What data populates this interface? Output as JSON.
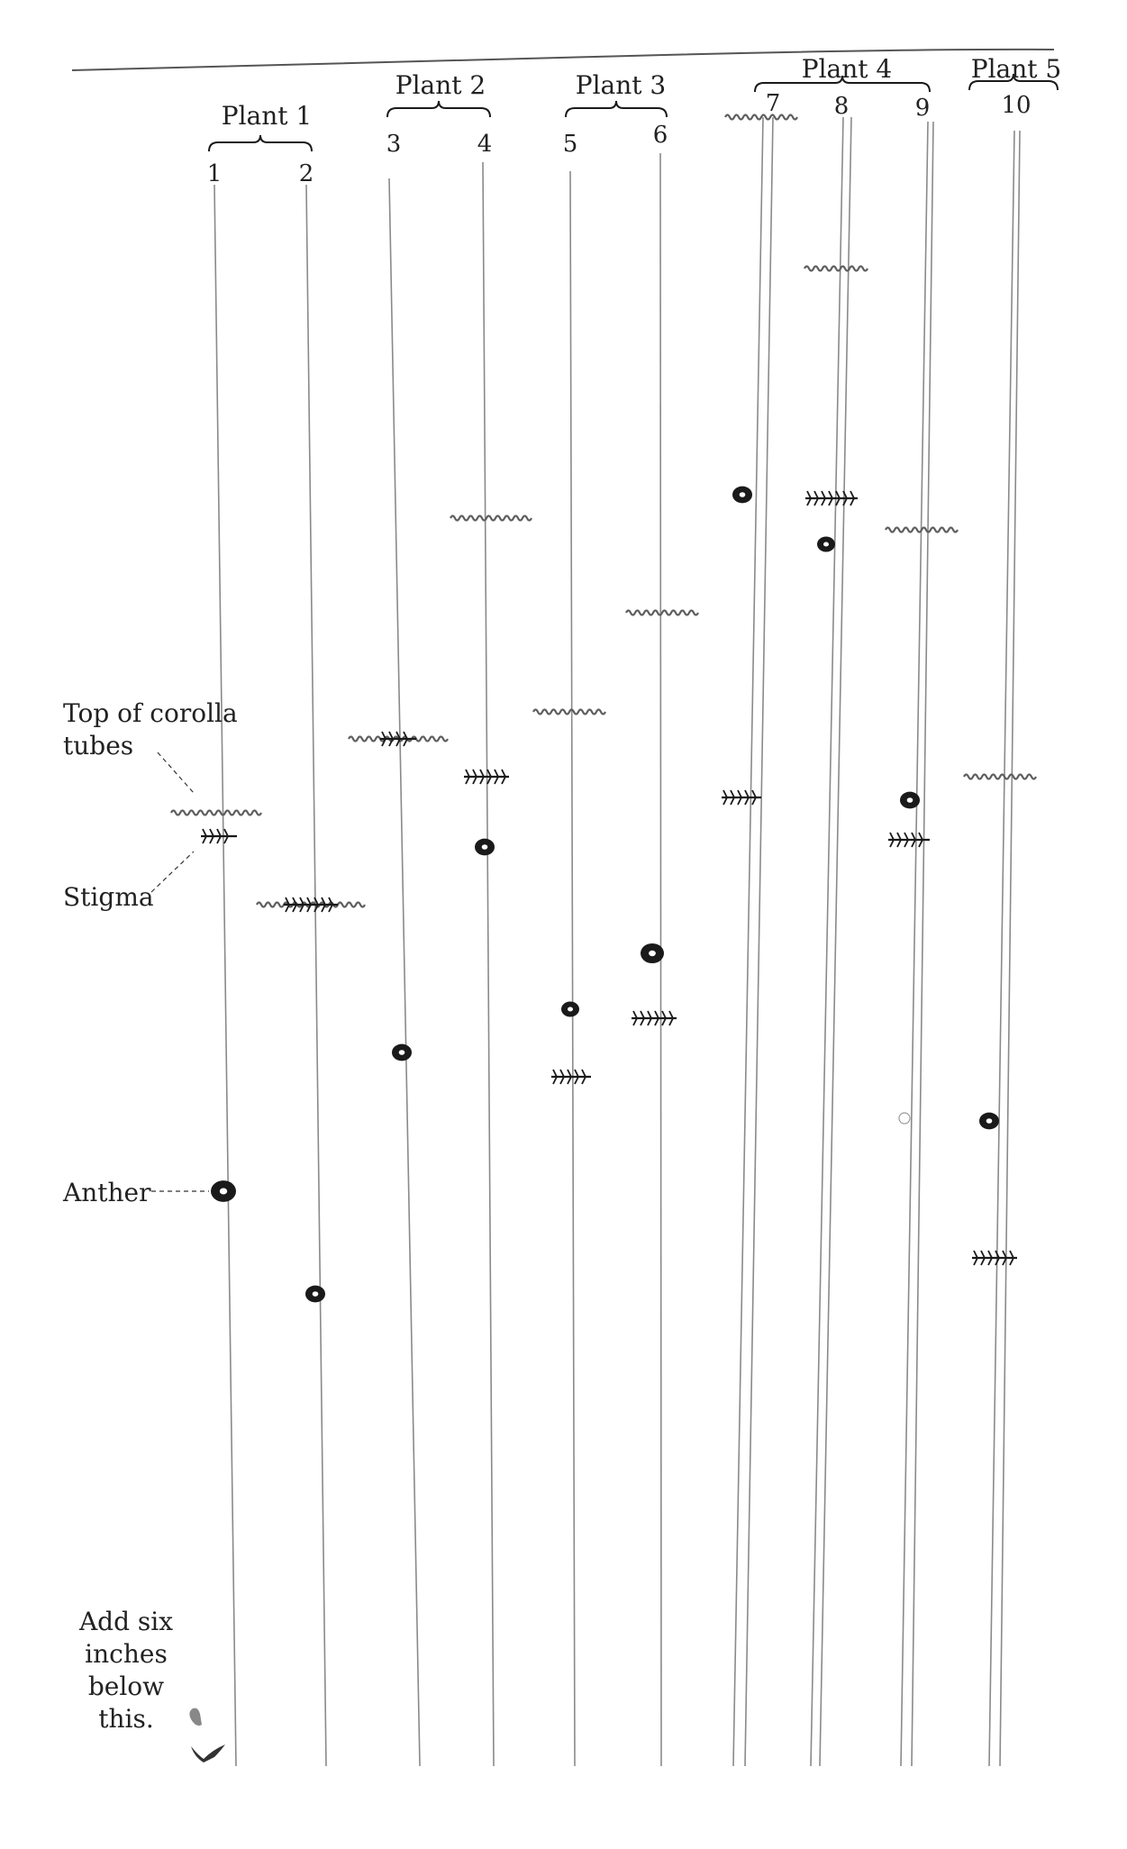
{
  "plants": [
    {
      "label": "Plant 1",
      "flowers": [
        "1",
        "2"
      ]
    },
    {
      "label": "Plant 2",
      "flowers": [
        "3",
        "4"
      ]
    },
    {
      "label": "Plant 3",
      "flowers": [
        "5",
        "6"
      ]
    },
    {
      "label": "Plant 4",
      "flowers": [
        "7",
        "8",
        "9"
      ]
    },
    {
      "label": "Plant 5",
      "flowers": [
        "10"
      ]
    }
  ],
  "legend": {
    "corolla": "Top of corolla tubes",
    "stigma": "Stigma",
    "anther": "Anther"
  },
  "note": "Add six inches below this.",
  "colors": {
    "ink": "#1a1a1a",
    "pencil": "#8a8a8a",
    "wavy": "#5e5e5e"
  }
}
